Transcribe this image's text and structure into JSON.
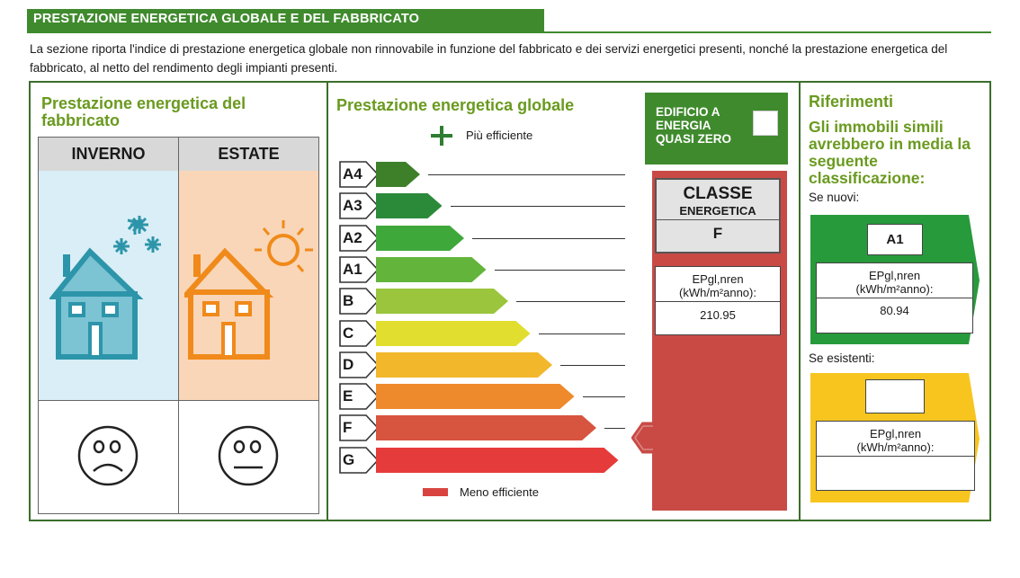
{
  "header": {
    "title": "PRESTAZIONE ENERGETICA GLOBALE E DEL FABBRICATO"
  },
  "intro": {
    "text": "La sezione riporta l'indice di prestazione energetica globale non rinnovabile in funzione del fabbricato e dei servizi energetici presenti, nonché la prestazione energetica del fabbricato, al netto del rendimento degli impianti presenti."
  },
  "fabbricato": {
    "title": "Prestazione energetica del fabbricato",
    "winter_label": "INVERNO",
    "summer_label": "ESTATE",
    "winter_rating": "sad",
    "summer_rating": "neutral"
  },
  "globale": {
    "title": "Prestazione energetica globale",
    "top_legend": "Più efficiente",
    "bottom_legend": "Meno efficiente",
    "classes": [
      {
        "label": "A4",
        "color": "#3e7f2a"
      },
      {
        "label": "A3",
        "color": "#2b8a3a"
      },
      {
        "label": "A2",
        "color": "#3fa83b"
      },
      {
        "label": "A1",
        "color": "#63b43a"
      },
      {
        "label": "B",
        "color": "#9ac53c"
      },
      {
        "label": "C",
        "color": "#e1de2f"
      },
      {
        "label": "D",
        "color": "#f2b72b"
      },
      {
        "label": "E",
        "color": "#ee8a2c"
      },
      {
        "label": "F",
        "color": "#d7543f"
      },
      {
        "label": "G",
        "color": "#e53b3a"
      }
    ],
    "current_class": "F"
  },
  "nzeb": {
    "label": "EDIFICIO A ENERGIA QUASI ZERO",
    "checked": false
  },
  "classe_energetica": {
    "title": "CLASSE",
    "subtitle": "ENERGETICA",
    "value": "F",
    "ep_label": "EPgl,nren",
    "ep_unit": "(kWh/m²anno):",
    "ep_value": "210.95"
  },
  "riferimenti": {
    "title": "Riferimenti",
    "subtitle": "Gli immobili simili avrebbero in media la seguente classificazione:",
    "nuovi_label": "Se nuovi:",
    "nuovi_class": "A1",
    "nuovi_ep_label": "EPgl,nren",
    "nuovi_ep_unit": "(kWh/m²anno):",
    "nuovi_ep_value": "80.94",
    "esistenti_label": "Se esistenti:",
    "esistenti_class": "",
    "esistenti_ep_label": "EPgl,nren",
    "esistenti_ep_unit": "(kWh/m²anno):",
    "esistenti_ep_value": ""
  },
  "colors": {
    "green": "#3f8a2d",
    "title_green": "#6a9a1f",
    "red_panel": "#c94a45",
    "winter_bg": "#d9eef6",
    "summer_bg": "#f9d6b8",
    "yellow": "#f7c51e"
  }
}
